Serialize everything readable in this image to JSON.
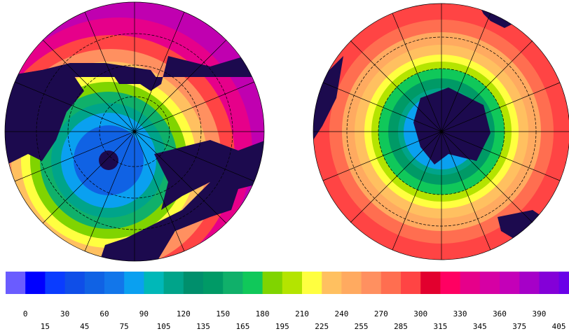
{
  "colorbar": {
    "ticks": [
      0,
      15,
      30,
      45,
      60,
      75,
      90,
      105,
      120,
      135,
      150,
      165,
      180,
      195,
      210,
      225,
      240,
      255,
      270,
      285,
      300,
      315,
      330,
      345,
      360,
      375,
      390,
      405
    ],
    "colors": [
      "#6a5cff",
      "#0000ff",
      "#0a3cff",
      "#0f4ee8",
      "#1062e4",
      "#1276ea",
      "#0aa0f0",
      "#00b8b8",
      "#00a48a",
      "#008f6c",
      "#009a66",
      "#10b06a",
      "#10c85a",
      "#80d400",
      "#b4e400",
      "#ffff40",
      "#ffc060",
      "#ffaa60",
      "#ff9060",
      "#ff6e50",
      "#ff4444",
      "#e2002e",
      "#ff0062",
      "#e6008a",
      "#d600a4",
      "#c400b8",
      "#a600c8",
      "#8400d8",
      "#6a00e8"
    ]
  }
}
